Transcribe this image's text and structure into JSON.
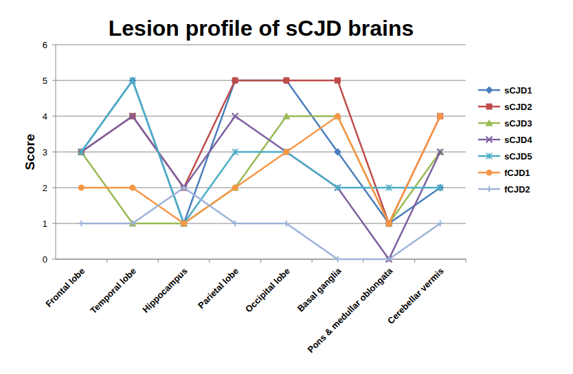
{
  "chart_data": {
    "type": "line",
    "title": "Lesion profile of sCJD brains",
    "y_label": "Score",
    "categories": [
      "Frontal lobe",
      "Temporal lobe",
      "Hippocampus",
      "Parietal lobe",
      "Occipital lobe",
      "Basal ganglia",
      "Pons & medullar oblongata",
      "Cerebellar vermis"
    ],
    "series": [
      {
        "name": "sCJD1",
        "color": "#4a7ebb",
        "marker": "diamond",
        "values": [
          3,
          5,
          1,
          5,
          5,
          3,
          1,
          2
        ]
      },
      {
        "name": "sCJD2",
        "color": "#be4b48",
        "marker": "square",
        "values": [
          3,
          4,
          2,
          5,
          5,
          5,
          1,
          4
        ]
      },
      {
        "name": "sCJD3",
        "color": "#98b954",
        "marker": "triangle",
        "values": [
          3,
          1,
          1,
          2,
          4,
          4,
          1,
          3
        ]
      },
      {
        "name": "sCJD4",
        "color": "#7d60a0",
        "marker": "x",
        "values": [
          3,
          4,
          2,
          4,
          3,
          2,
          0,
          3
        ]
      },
      {
        "name": "sCJD5",
        "color": "#4bacc6",
        "marker": "star",
        "values": [
          3,
          5,
          1,
          3,
          3,
          2,
          2,
          2
        ]
      },
      {
        "name": "fCJD1",
        "color": "#f79646",
        "marker": "circle",
        "values": [
          2,
          2,
          1,
          2,
          3,
          4,
          1,
          4
        ]
      },
      {
        "name": "fCJD2",
        "color": "#9eb2d8",
        "marker": "plus",
        "values": [
          1,
          1,
          2,
          1,
          1,
          0,
          0,
          1
        ]
      }
    ],
    "ylim": [
      0,
      6
    ],
    "yticks": [
      0,
      1,
      2,
      3,
      4,
      5,
      6
    ],
    "grid": true,
    "legend": "right"
  }
}
